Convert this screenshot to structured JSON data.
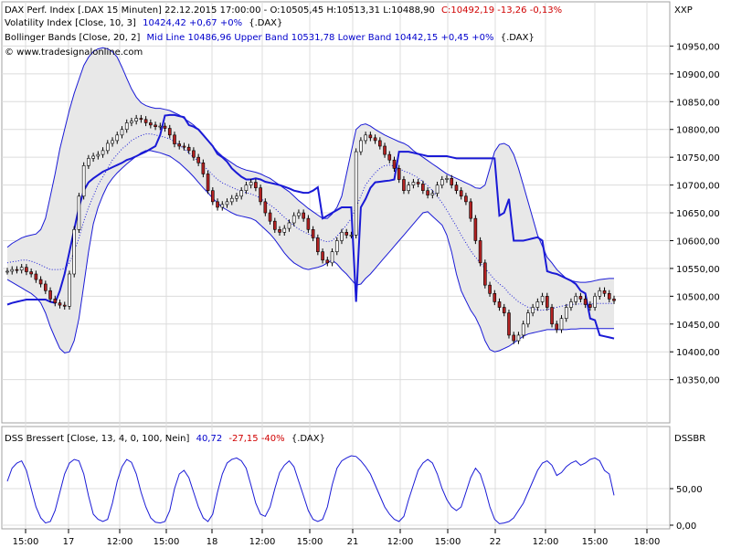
{
  "header": {
    "line1_prefix": "DAX Perf. Index [.DAX  15 Minuten] 22.12.2015 17:00:00 - O:10505,45 H:10513,31 L:10488,90",
    "line1_change": "C:10492,19 -13,26 -0,13%",
    "line2_prefix": "Volatility Index [Close, 10, 3]",
    "line2_value": "10424,42 +0,67 +0%",
    "line2_suffix": "{.DAX}",
    "line3_prefix": "Bollinger Bands [Close, 20, 2]",
    "line3_value": "Mid Line 10486,96 Upper Band 10531,78 Lower Band 10442,15 +0,45 +0%",
    "line3_suffix": "{.DAX}",
    "copyright": "© www.tradesignalonline.com",
    "lower_prefix": "DSS Bressert [Close, 13, 4, 0, 100, Nein]",
    "lower_value": "40,72",
    "lower_change": "-27,15 -40%",
    "lower_suffix": "{.DAX}"
  },
  "colors": {
    "up": "#ffffff",
    "down": "#b22222",
    "band": "#1a1ad6",
    "vol": "#1a1ad6",
    "fill": "#e8e8e8",
    "grid": "#dcdcdc",
    "neg": "#d00000",
    "pos": "#0000cc"
  },
  "chart_data": [
    {
      "type": "candlestick",
      "title": "DAX Perf. Index [.DAX  15 Minuten]",
      "ylabel": "XXP",
      "ylim": [
        10310,
        11000
      ],
      "y_ticks": [
        "10350,00",
        "10400,00",
        "10450,00",
        "10500,00",
        "10550,00",
        "10600,00",
        "10650,00",
        "10700,00",
        "10750,00",
        "10800,00",
        "10850,00",
        "10900,00",
        "10950,00"
      ],
      "x_ticks": [
        "15:00",
        "17",
        "12:00",
        "15:00",
        "18",
        "12:00",
        "15:00",
        "21",
        "12:00",
        "15:00",
        "22",
        "12:00",
        "15:00",
        "18:00"
      ],
      "series": [
        {
          "name": "DAX Perf. Index",
          "values": [
            10545,
            10548,
            10547,
            10552,
            10544,
            10540,
            10530,
            10522,
            10510,
            10495,
            10488,
            10484,
            10482,
            10540,
            10620,
            10680,
            10735,
            10748,
            10752,
            10755,
            10762,
            10775,
            10780,
            10790,
            10800,
            10812,
            10815,
            10820,
            10818,
            10812,
            10808,
            10805,
            10806,
            10802,
            10790,
            10774,
            10770,
            10768,
            10762,
            10750,
            10740,
            10720,
            10690,
            10670,
            10660,
            10665,
            10670,
            10676,
            10680,
            10690,
            10700,
            10705,
            10695,
            10670,
            10650,
            10635,
            10620,
            10615,
            10622,
            10632,
            10645,
            10650,
            10640,
            10620,
            10605,
            10580,
            10565,
            10560,
            10580,
            10600,
            10615,
            10610,
            10610,
            10760,
            10780,
            10790,
            10785,
            10780,
            10770,
            10755,
            10745,
            10730,
            10710,
            10690,
            10700,
            10705,
            10702,
            10690,
            10682,
            10685,
            10700,
            10710,
            10712,
            10700,
            10690,
            10680,
            10670,
            10640,
            10600,
            10560,
            10520,
            10505,
            10490,
            10480,
            10470,
            10430,
            10420,
            10430,
            10450,
            10470,
            10480,
            10490,
            10500,
            10480,
            10450,
            10440,
            10460,
            10480,
            10490,
            10500,
            10495,
            10485,
            10480,
            10500,
            10510,
            10505,
            10495,
            10492
          ]
        },
        {
          "name": "Bollinger Mid Line",
          "values": [
            10560,
            10562,
            10563,
            10565,
            10565,
            10563,
            10560,
            10556,
            10552,
            10548,
            10548,
            10548,
            10550,
            10560,
            10580,
            10605,
            10635,
            10660,
            10680,
            10700,
            10715,
            10730,
            10745,
            10755,
            10765,
            10772,
            10780,
            10785,
            10789,
            10792,
            10792,
            10790,
            10788,
            10786,
            10783,
            10778,
            10772,
            10765,
            10758,
            10750,
            10743,
            10735,
            10727,
            10718,
            10710,
            10704,
            10700,
            10696,
            10692,
            10689,
            10686,
            10684,
            10681,
            10676,
            10670,
            10664,
            10658,
            10650,
            10642,
            10634,
            10627,
            10621,
            10616,
            10612,
            10608,
            10604,
            10600,
            10598,
            10600,
            10608,
            10618,
            10628,
            10640,
            10660,
            10680,
            10700,
            10712,
            10722,
            10730,
            10735,
            10736,
            10734,
            10730,
            10725,
            10722,
            10718,
            10713,
            10706,
            10699,
            10690,
            10680,
            10668,
            10655,
            10640,
            10626,
            10610,
            10596,
            10582,
            10570,
            10560,
            10550,
            10540,
            10530,
            10522,
            10516,
            10505,
            10498,
            10490,
            10485,
            10480,
            10478,
            10475,
            10475,
            10476,
            10478,
            10480,
            10482,
            10484,
            10485,
            10486,
            10486,
            10486,
            10486,
            10487,
            10487,
            10487,
            10487,
            10487
          ]
        },
        {
          "name": "Bollinger Upper Band",
          "values": [
            10588,
            10595,
            10600,
            10605,
            10608,
            10610,
            10612,
            10620,
            10640,
            10680,
            10720,
            10765,
            10800,
            10835,
            10865,
            10890,
            10915,
            10930,
            10940,
            10945,
            10947,
            10945,
            10940,
            10930,
            10912,
            10892,
            10873,
            10858,
            10848,
            10843,
            10840,
            10838,
            10838,
            10836,
            10834,
            10830,
            10826,
            10820,
            10814,
            10808,
            10800,
            10790,
            10780,
            10770,
            10760,
            10752,
            10746,
            10740,
            10734,
            10730,
            10727,
            10725,
            10723,
            10720,
            10716,
            10712,
            10706,
            10700,
            10694,
            10688,
            10680,
            10672,
            10665,
            10658,
            10652,
            10646,
            10640,
            10640,
            10648,
            10660,
            10680,
            10720,
            10760,
            10800,
            10808,
            10810,
            10806,
            10800,
            10795,
            10790,
            10786,
            10782,
            10778,
            10775,
            10770,
            10762,
            10756,
            10750,
            10744,
            10738,
            10732,
            10726,
            10720,
            10716,
            10712,
            10708,
            10704,
            10700,
            10695,
            10694,
            10700,
            10730,
            10760,
            10773,
            10775,
            10770,
            10755,
            10730,
            10700,
            10670,
            10640,
            10610,
            10590,
            10570,
            10560,
            10548,
            10540,
            10532,
            10528,
            10526,
            10525,
            10525,
            10526,
            10528,
            10530,
            10531,
            10532,
            10532
          ]
        },
        {
          "name": "Bollinger Lower Band",
          "values": [
            10530,
            10525,
            10520,
            10515,
            10510,
            10505,
            10498,
            10488,
            10470,
            10445,
            10425,
            10406,
            10398,
            10400,
            10420,
            10460,
            10520,
            10580,
            10630,
            10660,
            10682,
            10700,
            10712,
            10722,
            10730,
            10738,
            10745,
            10752,
            10758,
            10762,
            10762,
            10760,
            10758,
            10755,
            10752,
            10746,
            10740,
            10732,
            10724,
            10715,
            10705,
            10695,
            10686,
            10676,
            10668,
            10660,
            10655,
            10650,
            10646,
            10644,
            10642,
            10640,
            10636,
            10628,
            10620,
            10612,
            10602,
            10590,
            10578,
            10568,
            10560,
            10555,
            10550,
            10548,
            10550,
            10552,
            10555,
            10560,
            10565,
            10558,
            10548,
            10540,
            10530,
            10520,
            10522,
            10532,
            10540,
            10550,
            10560,
            10570,
            10580,
            10590,
            10600,
            10610,
            10620,
            10630,
            10640,
            10650,
            10652,
            10644,
            10636,
            10628,
            10610,
            10580,
            10540,
            10510,
            10492,
            10475,
            10462,
            10444,
            10420,
            10404,
            10400,
            10402,
            10406,
            10410,
            10416,
            10422,
            10428,
            10432,
            10434,
            10436,
            10438,
            10440,
            10440,
            10440,
            10440,
            10440,
            10441,
            10441,
            10442,
            10442,
            10442,
            10442,
            10442,
            10442,
            10442,
            10442
          ]
        },
        {
          "name": "Volatility Index",
          "values": [
            10485,
            10488,
            10490,
            10492,
            10494,
            10494,
            10494,
            10494,
            10494,
            10490,
            10488,
            10510,
            10540,
            10580,
            10620,
            10660,
            10690,
            10705,
            10712,
            10718,
            10724,
            10728,
            10732,
            10736,
            10740,
            10745,
            10748,
            10752,
            10756,
            10760,
            10765,
            10770,
            10790,
            10825,
            10826,
            10826,
            10824,
            10822,
            10808,
            10805,
            10800,
            10790,
            10780,
            10770,
            10756,
            10750,
            10742,
            10730,
            10722,
            10715,
            10710,
            10710,
            10712,
            10710,
            10706,
            10704,
            10702,
            10700,
            10697,
            10694,
            10690,
            10688,
            10686,
            10686,
            10690,
            10696,
            10640,
            10645,
            10650,
            10655,
            10660,
            10660,
            10660,
            10490,
            10660,
            10675,
            10695,
            10705,
            10706,
            10707,
            10708,
            10710,
            10760,
            10760,
            10760,
            10758,
            10756,
            10754,
            10752,
            10752,
            10752,
            10752,
            10752,
            10750,
            10748,
            10748,
            10748,
            10748,
            10748,
            10748,
            10748,
            10748,
            10748,
            10645,
            10650,
            10675,
            10600,
            10600,
            10600,
            10602,
            10604,
            10606,
            10600,
            10545,
            10542,
            10540,
            10536,
            10532,
            10528,
            10522,
            10510,
            10505,
            10460,
            10457,
            10430,
            10428,
            10426,
            10424
          ]
        }
      ]
    },
    {
      "type": "line",
      "title": "DSS Bressert [Close, 13, 4, 0, 100, Nein]",
      "ylabel": "DSSBR",
      "ylim": [
        0,
        100
      ],
      "y_ticks": [
        "0,00",
        "50,00"
      ],
      "series": [
        {
          "name": "DSS Bressert",
          "values": [
            60,
            78,
            85,
            88,
            75,
            50,
            25,
            10,
            3,
            5,
            20,
            45,
            70,
            85,
            90,
            88,
            70,
            40,
            15,
            8,
            5,
            8,
            30,
            60,
            80,
            90,
            86,
            70,
            45,
            25,
            10,
            4,
            3,
            5,
            20,
            50,
            70,
            75,
            65,
            45,
            25,
            10,
            5,
            15,
            45,
            70,
            85,
            90,
            92,
            88,
            78,
            55,
            30,
            15,
            12,
            25,
            50,
            72,
            82,
            88,
            80,
            60,
            40,
            20,
            8,
            5,
            8,
            25,
            55,
            78,
            88,
            92,
            95,
            94,
            88,
            80,
            70,
            55,
            40,
            25,
            15,
            8,
            5,
            12,
            35,
            55,
            75,
            85,
            90,
            85,
            70,
            50,
            35,
            25,
            20,
            25,
            45,
            65,
            78,
            70,
            50,
            25,
            8,
            2,
            3,
            5,
            10,
            20,
            30,
            45,
            60,
            75,
            85,
            88,
            82,
            68,
            72,
            80,
            85,
            88,
            82,
            85,
            90,
            92,
            88,
            75,
            70,
            40.72
          ]
        }
      ]
    }
  ]
}
